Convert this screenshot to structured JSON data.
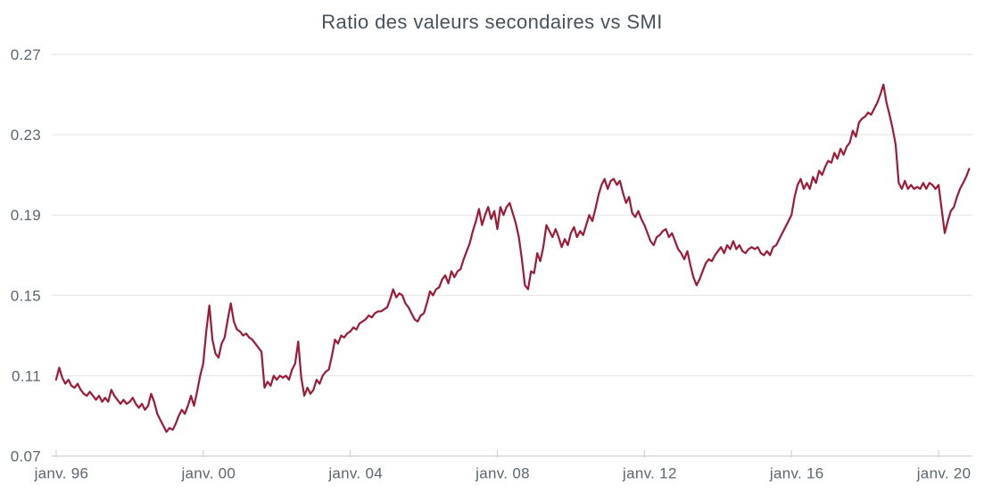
{
  "chart": {
    "title": "Ratio des valeurs secondaires vs SMI"
  },
  "chart_data": {
    "type": "line",
    "title": "Ratio des valeurs secondaires vs SMI",
    "xlabel": "",
    "ylabel": "",
    "legend": "none",
    "grid": "horizontal-only",
    "background": "#ffffff",
    "colors": {
      "line": "#9e1b37",
      "gridline": "#e2e2e2",
      "axis_line": "#c9ccd0",
      "tick_text": "#5c6670",
      "title_text": "#47525c"
    },
    "ylim": [
      0.07,
      0.27
    ],
    "xlim": [
      1995.88,
      2020.92
    ],
    "y_ticks": [
      {
        "value": 0.07,
        "label": "0.07"
      },
      {
        "value": 0.11,
        "label": "0.11"
      },
      {
        "value": 0.15,
        "label": "0.15"
      },
      {
        "value": 0.19,
        "label": "0.19"
      },
      {
        "value": 0.23,
        "label": "0.23"
      },
      {
        "value": 0.27,
        "label": "0.27"
      }
    ],
    "x_ticks": [
      {
        "value": 1996,
        "label": "janv. 96"
      },
      {
        "value": 2000,
        "label": "janv. 00"
      },
      {
        "value": 2004,
        "label": "janv. 04"
      },
      {
        "value": 2008,
        "label": "janv. 08"
      },
      {
        "value": 2012,
        "label": "janv. 12"
      },
      {
        "value": 2016,
        "label": "janv. 16"
      },
      {
        "value": 2020,
        "label": "janv. 20"
      }
    ],
    "series": [
      {
        "name": "Ratio valeurs secondaires vs SMI",
        "x_unit": "year (monthly samples, janv. 1996 - nov. 2020)",
        "x_start": 1996.0,
        "x_step": 0.0833333,
        "values": [
          0.108,
          0.114,
          0.109,
          0.106,
          0.108,
          0.105,
          0.104,
          0.106,
          0.103,
          0.101,
          0.1,
          0.102,
          0.1,
          0.098,
          0.1,
          0.097,
          0.099,
          0.097,
          0.103,
          0.1,
          0.098,
          0.096,
          0.098,
          0.096,
          0.097,
          0.099,
          0.096,
          0.094,
          0.096,
          0.093,
          0.095,
          0.101,
          0.097,
          0.091,
          0.088,
          0.085,
          0.082,
          0.084,
          0.083,
          0.086,
          0.09,
          0.093,
          0.091,
          0.095,
          0.1,
          0.095,
          0.102,
          0.11,
          0.116,
          0.132,
          0.145,
          0.128,
          0.121,
          0.119,
          0.126,
          0.129,
          0.138,
          0.146,
          0.137,
          0.133,
          0.132,
          0.13,
          0.131,
          0.129,
          0.128,
          0.126,
          0.124,
          0.122,
          0.104,
          0.107,
          0.105,
          0.11,
          0.108,
          0.11,
          0.109,
          0.11,
          0.108,
          0.113,
          0.116,
          0.127,
          0.109,
          0.1,
          0.104,
          0.101,
          0.103,
          0.108,
          0.106,
          0.11,
          0.112,
          0.113,
          0.12,
          0.128,
          0.126,
          0.13,
          0.129,
          0.131,
          0.132,
          0.134,
          0.133,
          0.136,
          0.137,
          0.138,
          0.14,
          0.139,
          0.141,
          0.142,
          0.142,
          0.143,
          0.144,
          0.148,
          0.153,
          0.149,
          0.151,
          0.15,
          0.146,
          0.144,
          0.141,
          0.138,
          0.137,
          0.14,
          0.141,
          0.146,
          0.152,
          0.15,
          0.153,
          0.154,
          0.158,
          0.16,
          0.156,
          0.162,
          0.159,
          0.162,
          0.163,
          0.168,
          0.172,
          0.176,
          0.182,
          0.187,
          0.193,
          0.185,
          0.19,
          0.194,
          0.188,
          0.192,
          0.183,
          0.194,
          0.19,
          0.194,
          0.196,
          0.191,
          0.186,
          0.179,
          0.168,
          0.155,
          0.153,
          0.162,
          0.161,
          0.171,
          0.167,
          0.174,
          0.185,
          0.182,
          0.179,
          0.183,
          0.179,
          0.174,
          0.178,
          0.175,
          0.181,
          0.184,
          0.179,
          0.182,
          0.18,
          0.185,
          0.19,
          0.187,
          0.193,
          0.2,
          0.205,
          0.208,
          0.203,
          0.207,
          0.208,
          0.205,
          0.207,
          0.201,
          0.196,
          0.199,
          0.191,
          0.189,
          0.192,
          0.188,
          0.185,
          0.181,
          0.177,
          0.175,
          0.179,
          0.18,
          0.182,
          0.183,
          0.179,
          0.181,
          0.177,
          0.173,
          0.171,
          0.168,
          0.172,
          0.165,
          0.159,
          0.155,
          0.158,
          0.162,
          0.166,
          0.168,
          0.167,
          0.17,
          0.172,
          0.174,
          0.171,
          0.175,
          0.173,
          0.177,
          0.173,
          0.175,
          0.172,
          0.171,
          0.173,
          0.174,
          0.173,
          0.174,
          0.171,
          0.17,
          0.172,
          0.17,
          0.174,
          0.175,
          0.178,
          0.181,
          0.184,
          0.187,
          0.19,
          0.199,
          0.205,
          0.208,
          0.203,
          0.206,
          0.203,
          0.209,
          0.206,
          0.212,
          0.21,
          0.214,
          0.217,
          0.216,
          0.221,
          0.218,
          0.223,
          0.22,
          0.224,
          0.226,
          0.232,
          0.229,
          0.236,
          0.238,
          0.239,
          0.241,
          0.24,
          0.243,
          0.246,
          0.25,
          0.255,
          0.246,
          0.24,
          0.233,
          0.225,
          0.206,
          0.203,
          0.207,
          0.203,
          0.205,
          0.203,
          0.204,
          0.203,
          0.206,
          0.203,
          0.206,
          0.205,
          0.203,
          0.205,
          0.193,
          0.181,
          0.187,
          0.192,
          0.194,
          0.199,
          0.203,
          0.206,
          0.209,
          0.213
        ]
      }
    ]
  }
}
